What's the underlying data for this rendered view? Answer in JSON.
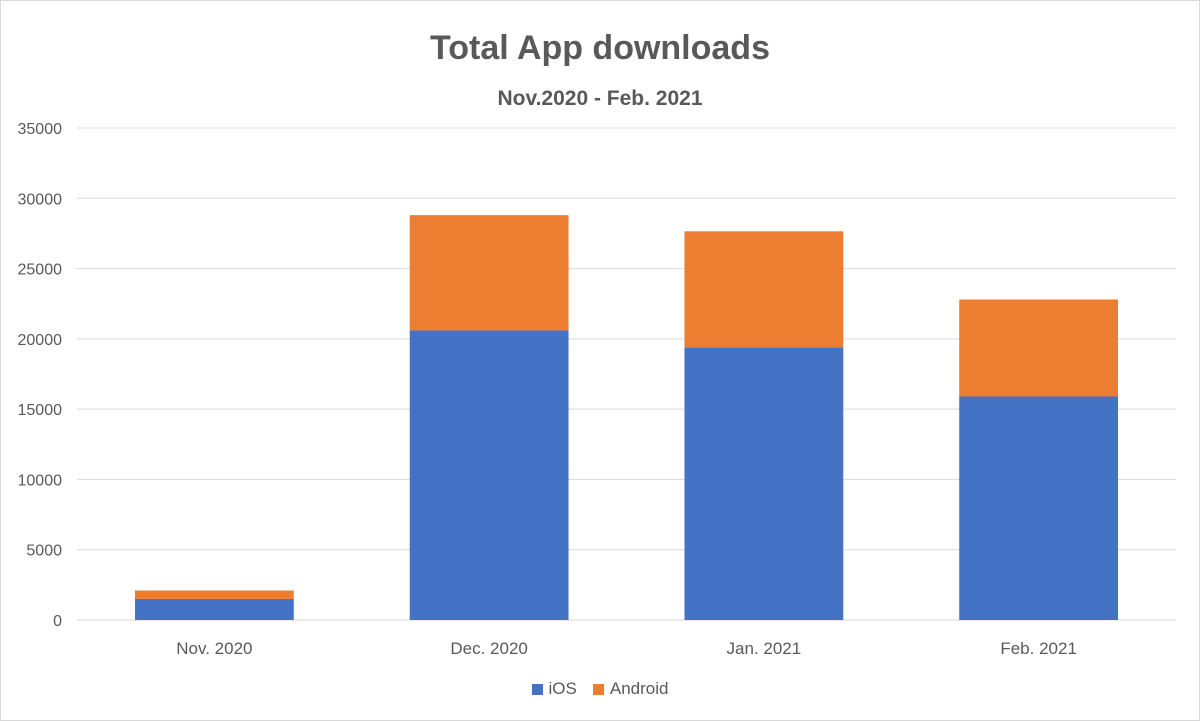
{
  "chart_data": {
    "type": "bar",
    "stacked": true,
    "title": "Total App downloads",
    "subtitle": "Nov.2020 - Feb. 2021",
    "xlabel": "",
    "ylabel": "",
    "categories": [
      "Nov. 2020",
      "Dec. 2020",
      "Jan. 2021",
      "Feb. 2021"
    ],
    "series": [
      {
        "name": "iOS",
        "color": "#4472c4",
        "values": [
          1500,
          20600,
          19400,
          15900
        ]
      },
      {
        "name": "Android",
        "color": "#ed7d31",
        "values": [
          600,
          8200,
          8250,
          6900
        ]
      }
    ],
    "ylim": [
      0,
      35000
    ],
    "yticks": [
      0,
      5000,
      10000,
      15000,
      20000,
      25000,
      30000,
      35000
    ],
    "grid": true,
    "legend_position": "bottom"
  }
}
